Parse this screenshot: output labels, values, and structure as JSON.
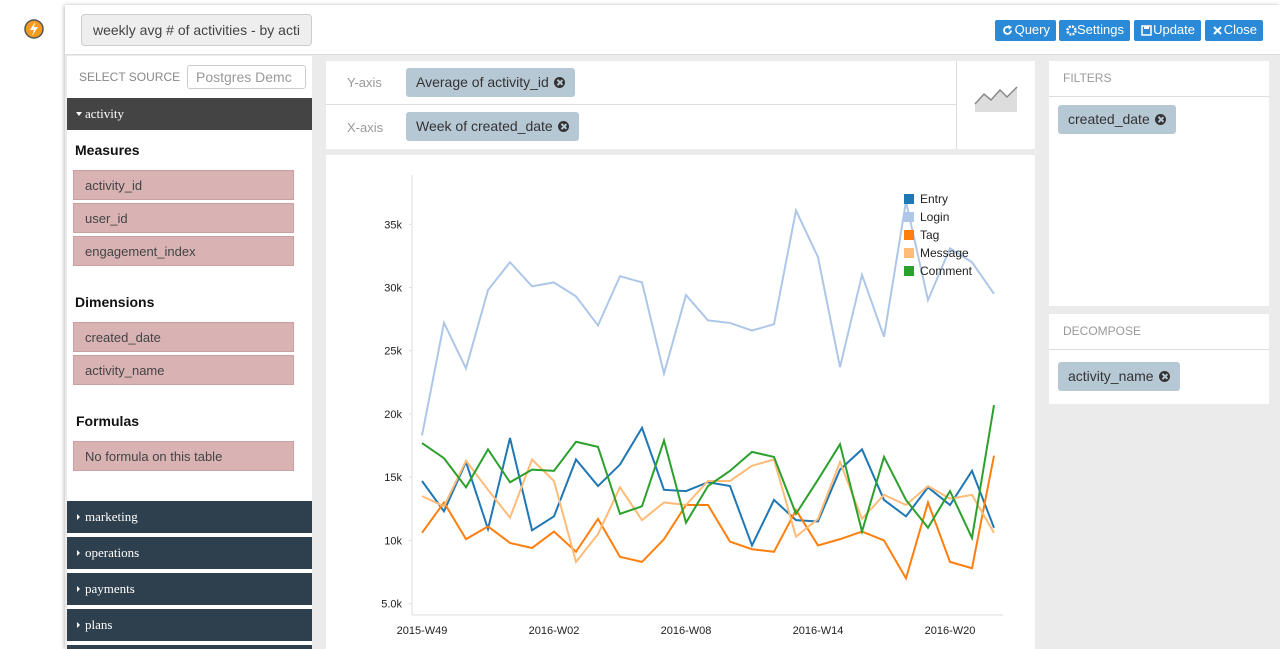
{
  "app": {
    "title_input": "weekly avg # of activities - by acti",
    "buttons": [
      "Query",
      "Settings",
      "Update",
      "Close"
    ]
  },
  "sidebar": {
    "select_source_label": "SELECT SOURCE",
    "source": "Postgres Demc",
    "active_table": "activity",
    "measures_heading": "Measures",
    "measures": [
      "activity_id",
      "user_id",
      "engagement_index"
    ],
    "dimensions_heading": "Dimensions",
    "dimensions": [
      "created_date",
      "activity_name"
    ],
    "formulas_heading": "Formulas",
    "formulas_empty": "No formula on this table",
    "other_tables": [
      "marketing",
      "operations",
      "payments",
      "plans"
    ]
  },
  "shelves": {
    "y_label": "Y-axis",
    "y_pill": "Average of activity_id",
    "x_label": "X-axis",
    "x_pill": "Week of created_date"
  },
  "filters": {
    "heading": "FILTERS",
    "pills": [
      "created_date"
    ]
  },
  "decompose": {
    "heading": "DECOMPOSE",
    "pills": [
      "activity_name"
    ]
  },
  "chart_data": {
    "type": "line",
    "categories": [
      "2015-W49",
      null,
      null,
      null,
      null,
      null,
      "2016-W02",
      null,
      null,
      null,
      null,
      null,
      "2016-W08",
      null,
      null,
      null,
      null,
      null,
      "2016-W14",
      null,
      null,
      null,
      null,
      null,
      "2016-W20",
      null,
      null
    ],
    "ylim": [
      4100,
      38900
    ],
    "yticks": [
      {
        "value": 5000,
        "label": "5.0k"
      },
      {
        "value": 10000,
        "label": "10k"
      },
      {
        "value": 15000,
        "label": "15k"
      },
      {
        "value": 20000,
        "label": "20k"
      },
      {
        "value": 25000,
        "label": "25k"
      },
      {
        "value": 30000,
        "label": "30k"
      },
      {
        "value": 35000,
        "label": "35k"
      }
    ],
    "grid": false,
    "legend": "top-right",
    "series": [
      {
        "name": "Entry",
        "color": "#1f77b4",
        "values": [
          14700,
          12300,
          16200,
          10900,
          18100,
          10800,
          11900,
          16400,
          14300,
          16000,
          18900,
          14000,
          13900,
          14600,
          14300,
          9600,
          13200,
          11600,
          11500,
          15600,
          17200,
          13200,
          11900,
          14200,
          12800,
          15500,
          11000
        ]
      },
      {
        "name": "Login",
        "color": "#aec7e8",
        "values": [
          18300,
          27200,
          23600,
          29800,
          32000,
          30100,
          30400,
          29300,
          27000,
          30900,
          30400,
          23200,
          29400,
          27400,
          27200,
          26600,
          27100,
          36100,
          32400,
          23700,
          31000,
          26100,
          36800,
          29000,
          33100,
          32000,
          29500
        ]
      },
      {
        "name": "Tag",
        "color": "#ff7f0e",
        "values": [
          10600,
          13000,
          10100,
          11100,
          9800,
          9400,
          10700,
          9100,
          11700,
          8700,
          8300,
          10100,
          12800,
          12800,
          9900,
          9300,
          9100,
          12400,
          9600,
          10100,
          10700,
          10000,
          7000,
          13000,
          8300,
          7800,
          16700
        ]
      },
      {
        "name": "Message",
        "color": "#ffbb78",
        "values": [
          13500,
          12700,
          16300,
          14000,
          11800,
          16400,
          14700,
          8300,
          10500,
          14200,
          11600,
          13000,
          12800,
          14700,
          14700,
          15900,
          16400,
          10300,
          11700,
          16200,
          11700,
          13600,
          12800,
          14300,
          13300,
          13600,
          10600
        ]
      },
      {
        "name": "Comment",
        "color": "#2ca02c",
        "values": [
          17700,
          16500,
          14200,
          17200,
          14600,
          15600,
          15500,
          17800,
          17400,
          12100,
          12700,
          17900,
          11400,
          14300,
          15500,
          17000,
          16600,
          12100,
          14800,
          17600,
          10700,
          16600,
          13200,
          11000,
          13900,
          10200,
          20700
        ]
      }
    ]
  }
}
